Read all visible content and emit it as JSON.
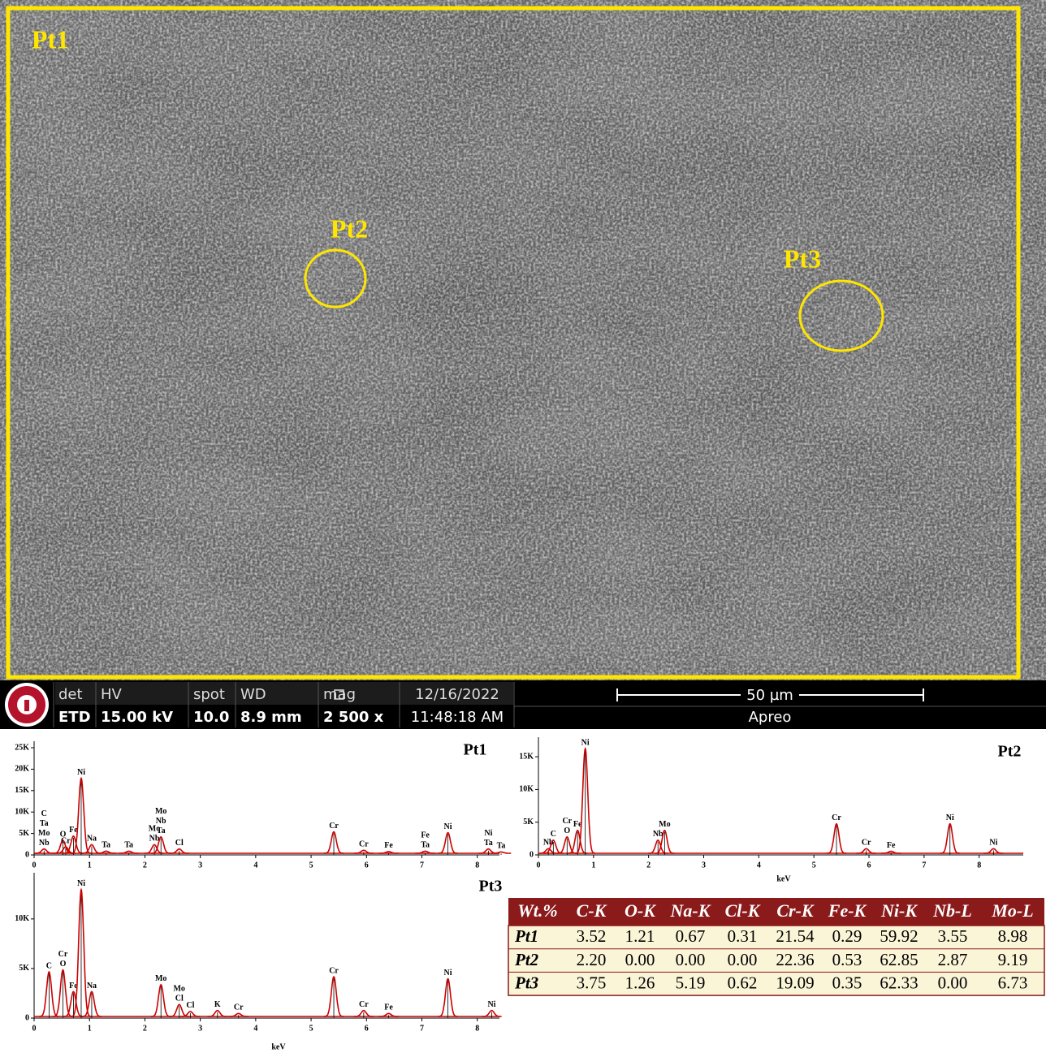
{
  "image": {
    "labels": [
      "Pt1",
      "Pt2",
      "Pt3"
    ]
  },
  "info_bar": {
    "cells": [
      {
        "head": "det",
        "value": "ETD"
      },
      {
        "head": "HV",
        "value": "15.00 kV"
      },
      {
        "head": "spot",
        "value": "10.0"
      },
      {
        "head": "WD",
        "value": "8.9 mm"
      },
      {
        "head": "mag",
        "value": "2 500 x"
      },
      {
        "head": "12/16/2022",
        "value": "11:48:18 AM"
      }
    ],
    "scale": "50 µm",
    "instrument": "Apreo"
  },
  "chart_data": [
    {
      "type": "spectrum",
      "title": "Pt1",
      "color": "#cc0000",
      "xlim": [
        0,
        8.4
      ],
      "xticks": [
        0,
        1,
        2,
        3,
        4,
        5,
        6,
        7,
        8
      ],
      "ylim": [
        0,
        25000
      ],
      "yticks": [
        0,
        {
          "value": 5000,
          "label": "5K"
        },
        {
          "value": 10000,
          "label": "10K"
        },
        {
          "value": 15000,
          "label": "15K"
        },
        {
          "value": 20000,
          "label": "20K"
        },
        {
          "value": 25000,
          "label": "25K"
        }
      ],
      "x": [
        0.18,
        0.52,
        0.57,
        0.71,
        0.85,
        1.04,
        1.3,
        1.71,
        2.17,
        2.29,
        2.62,
        5.41,
        5.95,
        6.4,
        7.06,
        7.47,
        8.2,
        8.43
      ],
      "values": [
        1000,
        3000,
        1500,
        4000,
        17500,
        2000,
        500,
        500,
        2000,
        3800,
        1000,
        5000,
        700,
        400,
        500,
        4800,
        1000,
        300
      ],
      "peak_labels": [
        [
          "Nb",
          "Mo",
          "Ta",
          "C"
        ],
        [
          "O"
        ],
        [
          "Cr"
        ],
        [
          "Fe"
        ],
        [
          "Ni"
        ],
        [
          "Na"
        ],
        [
          "Ta"
        ],
        [
          "Ta"
        ],
        [
          "Nb",
          "Mo"
        ],
        [
          "Ta",
          "Nb",
          "Mo"
        ],
        [
          "Cl"
        ],
        [
          "Cr"
        ],
        [
          "Cr"
        ],
        [
          "Fe"
        ],
        [
          "Ta",
          "Fe"
        ],
        [
          "Ni"
        ],
        [
          "Ta",
          "Ni"
        ],
        [
          "Ta"
        ]
      ]
    },
    {
      "type": "spectrum",
      "title": "Pt2",
      "xlabel": "keV",
      "color": "#cc0000",
      "xlim": [
        0,
        8.8
      ],
      "xticks": [
        0,
        1,
        2,
        3,
        4,
        5,
        6,
        7,
        8
      ],
      "ylim": [
        0,
        17000
      ],
      "yticks": [
        0,
        {
          "value": 5000,
          "label": "5K"
        },
        {
          "value": 10000,
          "label": "10K"
        },
        {
          "value": 15000,
          "label": "15K"
        }
      ],
      "x": [
        0.18,
        0.27,
        0.52,
        0.71,
        0.85,
        2.17,
        2.29,
        5.41,
        5.95,
        6.4,
        7.47,
        8.26
      ],
      "values": [
        700,
        2000,
        2500,
        3500,
        16000,
        2000,
        3500,
        4500,
        700,
        300,
        4500,
        700
      ],
      "peak_labels": [
        [
          "Nb"
        ],
        [
          "C"
        ],
        [
          "O",
          "Cr"
        ],
        [
          "Fe"
        ],
        [
          "Ni"
        ],
        [
          "Nb"
        ],
        [
          "Mo"
        ],
        [
          "Cr"
        ],
        [
          "Cr"
        ],
        [
          "Fe"
        ],
        [
          "Ni"
        ],
        [
          "Ni"
        ]
      ]
    },
    {
      "type": "spectrum",
      "title": "Pt3",
      "xlabel": "keV",
      "color": "#cc0000",
      "xlim": [
        0,
        8.4
      ],
      "xticks": [
        0,
        1,
        2,
        3,
        4,
        5,
        6,
        7,
        8
      ],
      "ylim": [
        0,
        14000
      ],
      "yticks": [
        0,
        {
          "value": 5000,
          "label": "5K"
        },
        {
          "value": 10000,
          "label": "10K"
        }
      ],
      "x": [
        0.27,
        0.52,
        0.71,
        0.85,
        1.04,
        2.29,
        2.62,
        2.82,
        3.31,
        3.69,
        5.41,
        5.95,
        6.4,
        7.47,
        8.26
      ],
      "values": [
        4500,
        4700,
        2500,
        12800,
        2500,
        3200,
        1200,
        500,
        600,
        300,
        4000,
        600,
        300,
        3800,
        600
      ],
      "peak_labels": [
        [
          "C"
        ],
        [
          "O",
          "Cr"
        ],
        [
          "Fe"
        ],
        [
          "Ni"
        ],
        [
          "Na"
        ],
        [
          "Mo"
        ],
        [
          "Cl",
          "Mo"
        ],
        [
          "Cl"
        ],
        [
          "K"
        ],
        [
          "Cr"
        ],
        [
          "Cr"
        ],
        [
          "Cr"
        ],
        [
          "Fe"
        ],
        [
          "Ni"
        ],
        [
          "Ni"
        ]
      ]
    }
  ],
  "table": {
    "header": [
      "Wt.%",
      "C-K",
      "O-K",
      "Na-K",
      "Cl-K",
      "Cr-K",
      "Fe-K",
      "Ni-K",
      "Nb-L",
      "Mo-L"
    ],
    "rows": [
      [
        "Pt1",
        "3.52",
        "1.21",
        "0.67",
        "0.31",
        "21.54",
        "0.29",
        "59.92",
        "3.55",
        "8.98"
      ],
      [
        "Pt2",
        "2.20",
        "0.00",
        "0.00",
        "0.00",
        "22.36",
        "0.53",
        "62.85",
        "2.87",
        "9.19"
      ],
      [
        "Pt3",
        "3.75",
        "1.26",
        "5.19",
        "0.62",
        "19.09",
        "0.35",
        "62.33",
        "0.00",
        "6.73"
      ]
    ]
  }
}
